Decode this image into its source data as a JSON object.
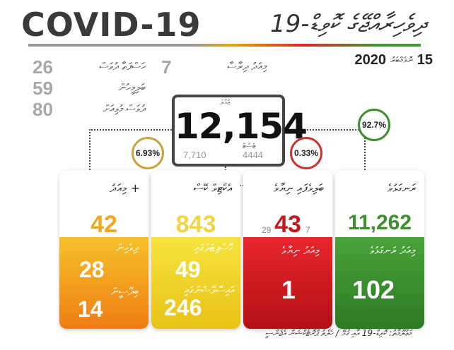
{
  "header": {
    "title": "COVID-19",
    "title_dv": "ދިވެހިރާއްޖޭގެ ކޮވިޑް-19",
    "date_day": "15",
    "date_dv": "ނޮވެމްބަރު",
    "date_year": "2020"
  },
  "side_stats": [
    {
      "value": "26",
      "label": "ހަސްފަތާ ދުވަސް"
    },
    {
      "value": "59",
      "label": "ބަލިމީހުން"
    },
    {
      "value": "80",
      "label": "ދުވަސް މުޅިއަށް"
    }
  ],
  "side_extra": {
    "value": "7",
    "label": "މިއަދު ދިރާސާ"
  },
  "total": {
    "value": "12,154",
    "label_top": "ޖުމްލަ",
    "label_bottom": "ޓެސްޓް",
    "left_small": "7,710",
    "right_small": "4444"
  },
  "percents": {
    "left": "6.93%",
    "middle": "0.33%",
    "right": "92.7%"
  },
  "cards": [
    {
      "label": "+ މިއަދު",
      "value": "42",
      "value_color": "#f0a81c",
      "bottom_gradient": [
        "#f6c12a",
        "#ef7d14"
      ],
      "bottom_items": [
        {
          "dv": "ދިވެހިން",
          "num": "28"
        },
        {
          "dv": "ބިދޭސީން",
          "num": "14"
        }
      ]
    },
    {
      "label": "އެކްޓިވް ކޭސް",
      "value": "843",
      "value_color": "#f2d544",
      "bottom_gradient": [
        "#f6e33d",
        "#e8c217"
      ],
      "bottom_items": [
        {
          "dv": "ހޮސްޕިޓަލްގައި",
          "num": "49"
        },
        {
          "dv": "އައިސޮލޭޝަންގައި",
          "num": "246"
        }
      ]
    },
    {
      "label": "ބަލިވެފައި ނިޔާވެ",
      "value": "43",
      "value_color": "#c8161d",
      "mini_left": "29",
      "mini_right": "7",
      "bottom_gradient": [
        "#e8262d",
        "#b30f16"
      ],
      "bottom_items": [
        {
          "dv": "މިއަދު ނިޔާވެ",
          "num": "1"
        }
      ]
    },
    {
      "label": "ރަނގަޅުވެ",
      "value": "11,262",
      "value_color": "#3f8f2f",
      "bottom_gradient": [
        "#4aa23a",
        "#2d7a24"
      ],
      "bottom_items": [
        {
          "dv": "މިއަދު ރަނގަޅުވެ",
          "num": "102"
        }
      ]
    }
  ],
  "footer": "މަޢުލޫމާތު: ކޮވިޑް-19 އާއި ގުޅޭ / ހެލްތު ޕްރޮޓެކްޝަން އެޖެންސީ"
}
